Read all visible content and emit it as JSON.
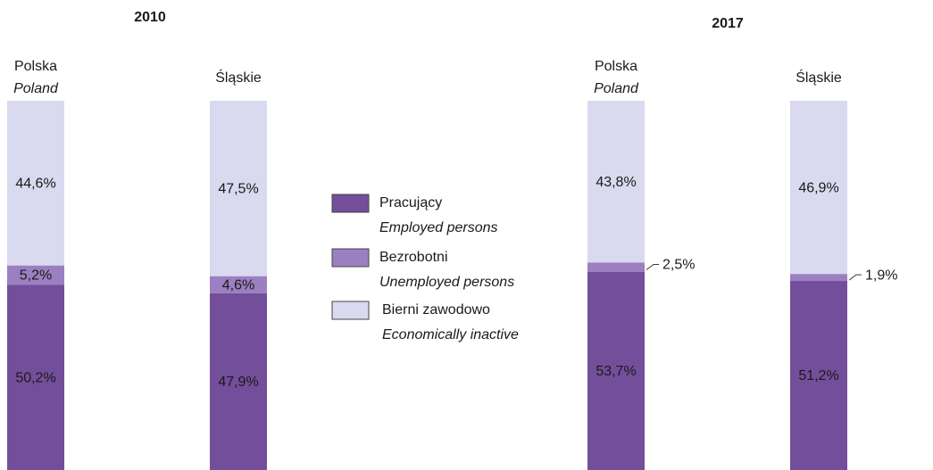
{
  "chart_data": {
    "type": "bar",
    "stacked": true,
    "group_titles": [
      "2010",
      "2017"
    ],
    "categories": [
      "Polska",
      "Śląskie",
      "Polska",
      "Śląskie"
    ],
    "category_subtitles": [
      "Poland",
      null,
      "Poland",
      null
    ],
    "ylim": [
      0,
      100
    ],
    "series": [
      {
        "name": "Pracujący",
        "name_en": "Employed persons",
        "color": "#734e9a",
        "values": [
          50.2,
          47.9,
          53.7,
          51.2
        ],
        "value_labels": [
          "50,2%",
          "47,9%",
          "53,7%",
          "51,2%"
        ]
      },
      {
        "name": "Bezrobotni",
        "name_en": "Unemployed persons",
        "color": "#9c7fc1",
        "values": [
          5.2,
          4.6,
          2.5,
          1.9
        ],
        "value_labels": [
          "5,2%",
          "4,6%",
          "2,5%",
          "1,9%"
        ]
      },
      {
        "name": "Bierni zawodowo",
        "name_en": "Economically inactive",
        "color": "#d9d9ef",
        "values": [
          44.6,
          47.5,
          43.8,
          46.9
        ],
        "value_labels": [
          "44,6%",
          "47,5%",
          "43,8%",
          "46,9%"
        ]
      }
    ]
  }
}
